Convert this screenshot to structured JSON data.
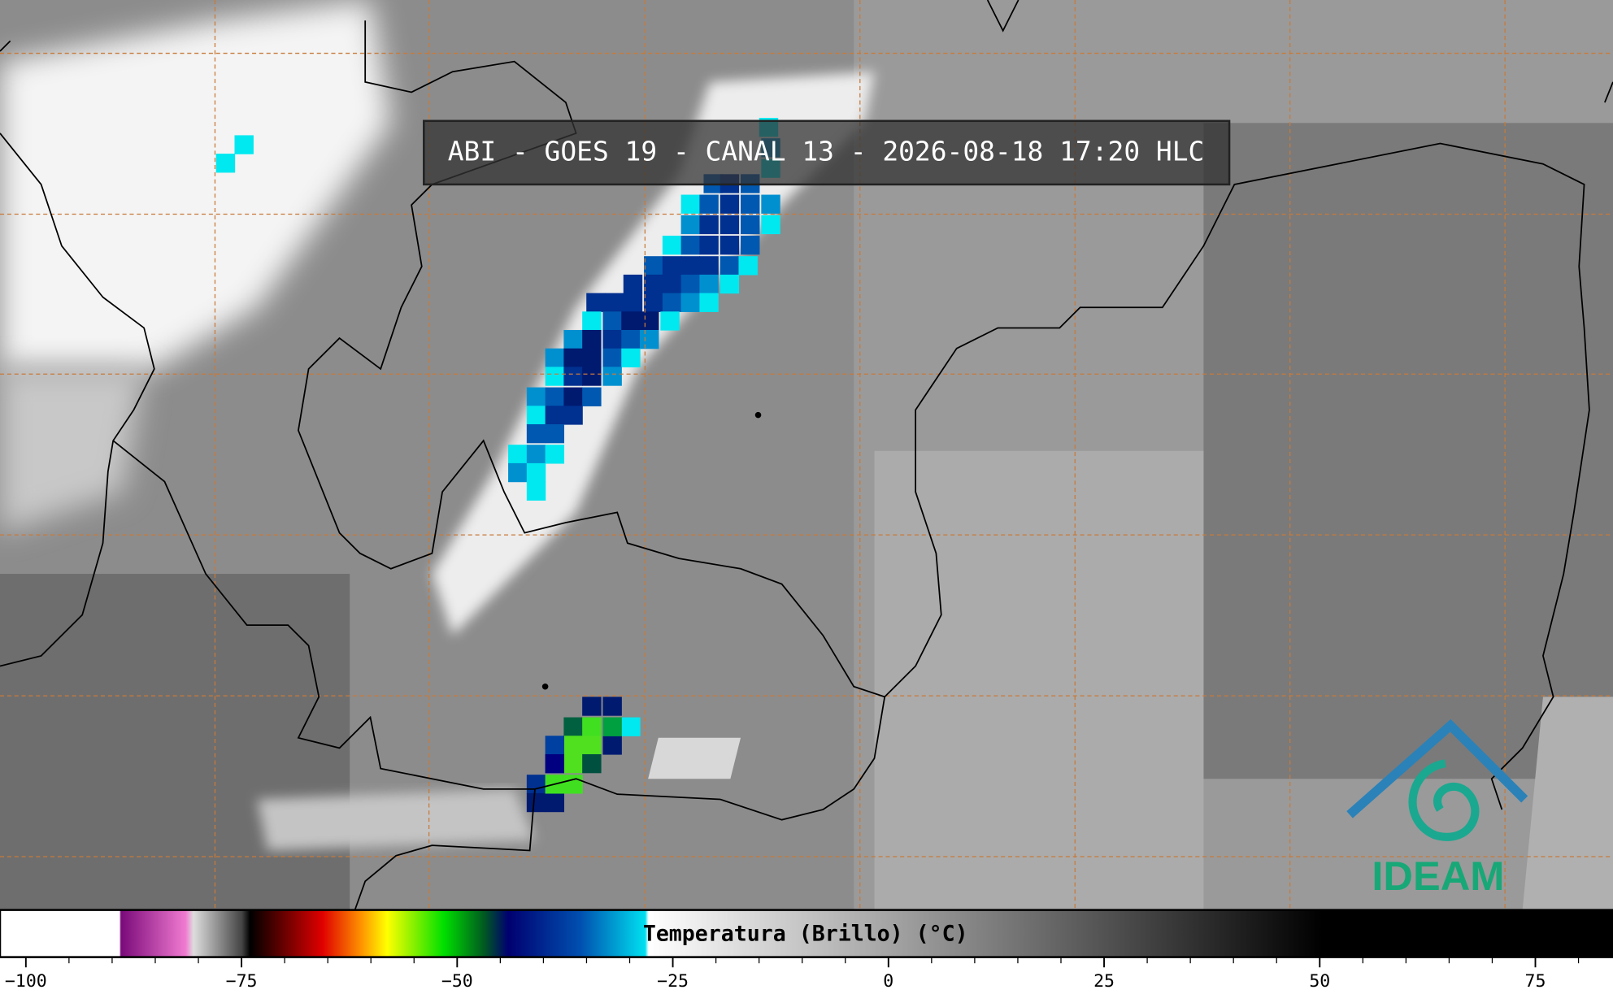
{
  "header": {
    "title": "ABI - GOES 19 - CANAL 13 - 2026-08-18 17:20 HLC"
  },
  "logo": {
    "text": "IDEAM"
  },
  "colorbar": {
    "label": "Temperatura (Brillo) (°C)",
    "lim": [
      -103,
      84
    ],
    "ticks": [
      {
        "value": -100,
        "label": "−100"
      },
      {
        "value": -75,
        "label": "−75"
      },
      {
        "value": -50,
        "label": "−50"
      },
      {
        "value": -25,
        "label": "−25"
      },
      0,
      25,
      50,
      75
    ],
    "minor_ticks": [
      -95,
      -90,
      -85,
      -80,
      -70,
      -65,
      -60,
      -55,
      -45,
      -40,
      -35,
      -30,
      -20,
      -15,
      -10,
      -5,
      5,
      10,
      15,
      20,
      30,
      35,
      40,
      45,
      55,
      60,
      65,
      70,
      80
    ]
  }
}
